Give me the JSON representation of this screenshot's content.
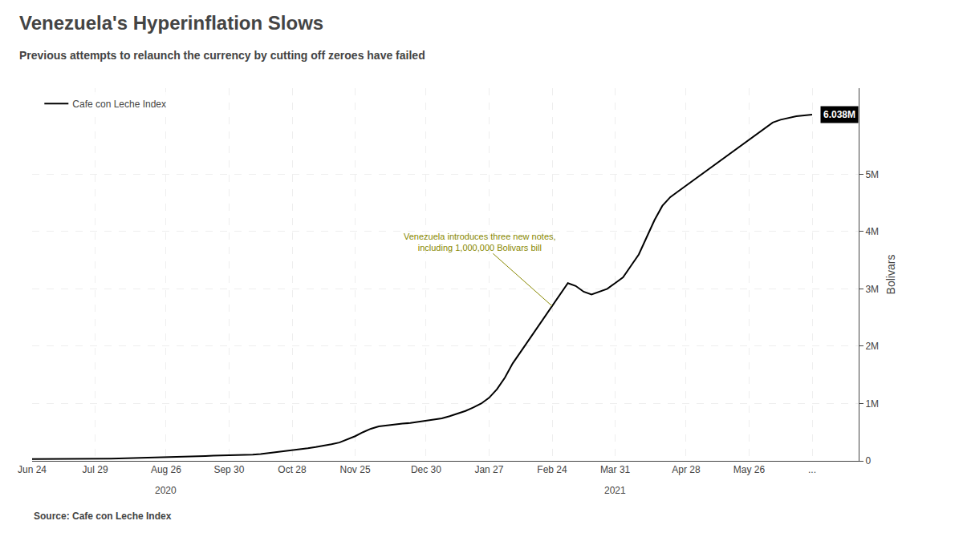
{
  "chart_data": {
    "type": "line",
    "title": "Venezuela's Hyperinflation Slows",
    "subtitle": "Previous attempts to relaunch the currency by cutting off zeroes have failed",
    "ylabel": "Bolivars",
    "source": "Source: Cafe con Leche Index",
    "categories": [
      "Jun 24",
      null,
      null,
      null,
      null,
      null,
      null,
      null,
      "Jul 29",
      null,
      null,
      null,
      null,
      null,
      null,
      null,
      null,
      "Aug 26",
      null,
      null,
      null,
      null,
      null,
      null,
      null,
      "Sep 30",
      null,
      null,
      null,
      null,
      null,
      null,
      null,
      "Oct 28",
      null,
      null,
      null,
      null,
      null,
      null,
      null,
      "Nov 25",
      null,
      null,
      null,
      null,
      null,
      null,
      null,
      null,
      "Dec 30",
      null,
      null,
      null,
      null,
      null,
      null,
      null,
      "Jan 27",
      null,
      null,
      null,
      null,
      null,
      null,
      null,
      "Feb 24",
      null,
      null,
      null,
      null,
      null,
      null,
      null,
      "Mar 31",
      null,
      null,
      null,
      null,
      null,
      null,
      null,
      null,
      "Apr 28",
      null,
      null,
      null,
      null,
      null,
      null,
      null,
      "May 26",
      null,
      null,
      null,
      null,
      null,
      null,
      null,
      "..."
    ],
    "series": [
      {
        "name": "Cafe con Leche Index",
        "color": "#000000",
        "values": [
          30000,
          30000,
          30000,
          32000,
          33000,
          35000,
          35000,
          35000,
          36000,
          38000,
          40000,
          42000,
          45000,
          50000,
          55000,
          60000,
          65000,
          68000,
          70000,
          75000,
          78000,
          82000,
          85000,
          90000,
          92000,
          95000,
          100000,
          105000,
          110000,
          120000,
          135000,
          150000,
          165000,
          180000,
          200000,
          220000,
          240000,
          260000,
          290000,
          320000,
          370000,
          430000,
          500000,
          560000,
          600000,
          620000,
          640000,
          650000,
          660000,
          680000,
          700000,
          720000,
          740000,
          780000,
          820000,
          870000,
          930000,
          1000000,
          1100000,
          1250000,
          1450000,
          1700000,
          1900000,
          2100000,
          2300000,
          2500000,
          2700000,
          2900000,
          3100000,
          3050000,
          2950000,
          2900000,
          2950000,
          3000000,
          3100000,
          3200000,
          3400000,
          3600000,
          3900000,
          4200000,
          4450000,
          4600000,
          4700000,
          4800000,
          4900000,
          5000000,
          5100000,
          5200000,
          5300000,
          5400000,
          5500000,
          5600000,
          5700000,
          5800000,
          5900000,
          5950000,
          5980000,
          6010000,
          6025000,
          6038000
        ]
      }
    ],
    "ylim": [
      0,
      6500000
    ],
    "yticks": [
      0,
      {
        "value": 1000000,
        "label": "1M"
      },
      {
        "value": 2000000,
        "label": "2M"
      },
      {
        "value": 3000000,
        "label": "3M"
      },
      {
        "value": 4000000,
        "label": "4M"
      },
      {
        "value": 5000000,
        "label": "5M"
      }
    ],
    "grid": true,
    "legend": "upper left",
    "annotations": [
      {
        "text": "Venezuela introduces three new notes,\nincluding 1,000,000 Bolivars bill",
        "at": "Feb 24"
      }
    ],
    "last_value_label": "6.038M",
    "x_group_labels": [
      {
        "text": "2020",
        "at": "Aug 26"
      },
      {
        "text": "2021",
        "at": "Mar 31"
      }
    ]
  }
}
